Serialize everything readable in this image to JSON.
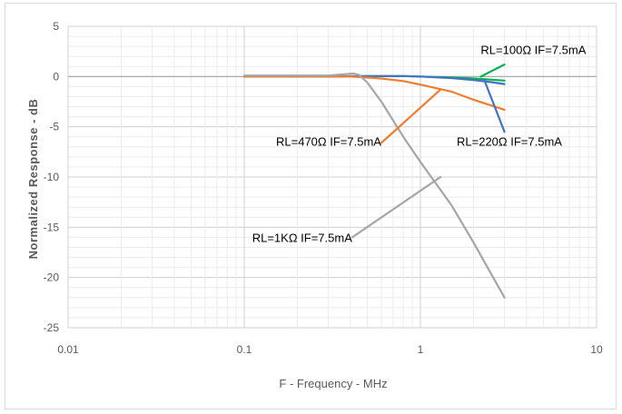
{
  "chart_data": {
    "type": "line",
    "title": "",
    "xlabel": "F - Frequency - MHz",
    "ylabel": "Normalized Response - dB",
    "xscale": "log",
    "xlim": [
      0.01,
      10
    ],
    "ylim": [
      -25,
      5
    ],
    "x_ticks": [
      "0.01",
      "0.1",
      "1",
      "10"
    ],
    "y_ticks": [
      "5",
      "0",
      "-5",
      "-10",
      "-15",
      "-20",
      "-25"
    ],
    "grid": true,
    "series": [
      {
        "name": "RL=100Ω IF=7.5mA",
        "color": "#00b050",
        "x": [
          0.1,
          0.3,
          0.5,
          0.8,
          1.0,
          1.5,
          2.0,
          2.5,
          3.0
        ],
        "y": [
          0.0,
          0.0,
          0.05,
          0.05,
          0.0,
          -0.1,
          -0.2,
          -0.3,
          -0.4
        ]
      },
      {
        "name": "RL=220Ω IF=7.5mA",
        "color": "#4472c4",
        "x": [
          0.1,
          0.3,
          0.5,
          0.8,
          1.0,
          1.5,
          2.0,
          2.5,
          3.0
        ],
        "y": [
          0.0,
          0.0,
          0.05,
          0.05,
          0.0,
          -0.15,
          -0.35,
          -0.55,
          -0.75
        ]
      },
      {
        "name": "RL=470Ω IF=7.5mA",
        "color": "#ed7d31",
        "x": [
          0.1,
          0.3,
          0.4,
          0.5,
          0.6,
          0.8,
          1.0,
          1.5,
          2.0,
          3.0
        ],
        "y": [
          0.0,
          0.0,
          0.0,
          -0.1,
          -0.2,
          -0.45,
          -0.8,
          -1.5,
          -2.3,
          -3.3
        ]
      },
      {
        "name": "RL=1KΩ IF=7.5mA",
        "color": "#a5a5a5",
        "x": [
          0.1,
          0.3,
          0.38,
          0.42,
          0.45,
          0.5,
          0.6,
          0.8,
          1.0,
          1.5,
          2.0,
          3.0
        ],
        "y": [
          0.1,
          0.1,
          0.25,
          0.3,
          0.15,
          -0.6,
          -2.5,
          -6.0,
          -8.5,
          -12.8,
          -16.5,
          -22.0
        ]
      }
    ],
    "annotations": [
      {
        "text": "RL=100Ω IF=7.5mA",
        "series": 0,
        "text_at": [
          2.2,
          2.6
        ],
        "pointer_from": [
          2.2,
          0.0
        ],
        "pointer_to": [
          3.0,
          1.2
        ]
      },
      {
        "text": "RL=220Ω IF=7.5mA",
        "series": 1,
        "text_at": [
          3.2,
          -6.5
        ],
        "pointer_from": [
          2.3,
          -0.3
        ],
        "pointer_to": [
          3.0,
          -5.5
        ]
      },
      {
        "text": "RL=470Ω IF=7.5mA",
        "series": 2,
        "text_at": [
          0.6,
          -6.5
        ],
        "pointer_from": [
          0.6,
          -6.6
        ],
        "pointer_to": [
          1.3,
          -1.3
        ]
      },
      {
        "text": "RL=1KΩ IF=7.5mA",
        "series": 3,
        "text_at": [
          0.41,
          -16.1
        ],
        "pointer_from": [
          0.41,
          -16.0
        ],
        "pointer_to": [
          1.3,
          -10.0
        ]
      }
    ]
  }
}
